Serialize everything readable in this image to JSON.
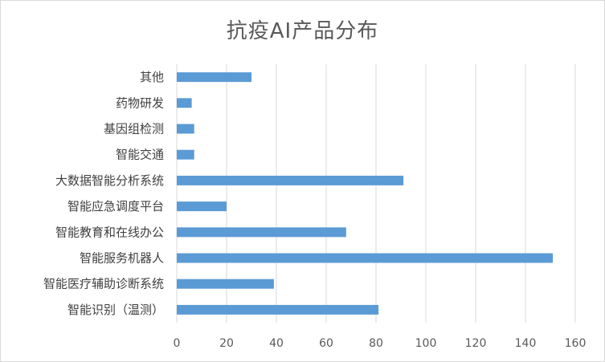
{
  "chart_data": {
    "type": "bar",
    "orientation": "horizontal",
    "title": "抗疫AI产品分布",
    "categories": [
      "其他",
      "药物研发",
      "基因组检测",
      "智能交通",
      "大数据智能分析系统",
      "智能应急调度平台",
      "智能教育和在线办公",
      "智能服务机器人",
      "智能医疗辅助诊断系统",
      "智能识别（温测）"
    ],
    "values": [
      30,
      6,
      7,
      7,
      91,
      20,
      68,
      151,
      39,
      81
    ],
    "xlim": [
      0,
      160
    ],
    "xticks": [
      0,
      20,
      40,
      60,
      80,
      100,
      120,
      140,
      160
    ],
    "grid": "vertical",
    "bar_color": "#5b9bd5",
    "grid_color": "#d9d9d9",
    "legend": "none"
  }
}
